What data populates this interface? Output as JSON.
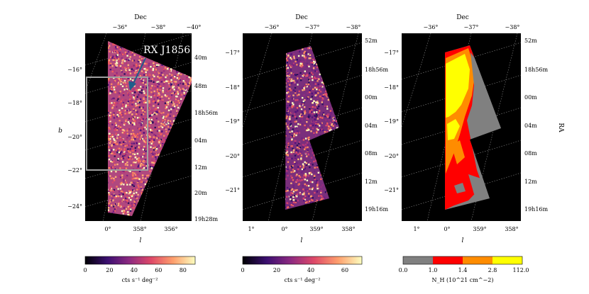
{
  "chart_data": [
    {
      "type": "heatmap",
      "top_axis_label": "Dec",
      "top_ticks": [
        "−36°",
        "−38°",
        "−40°"
      ],
      "right_ticks": [
        "40m",
        "48m",
        "18h56m",
        "04m",
        "12m",
        "20m",
        "19h28m"
      ],
      "left_axis_label": "b",
      "left_ticks": [
        "−16°",
        "−18°",
        "−20°",
        "−22°",
        "−24°"
      ],
      "bottom_axis_label": "l",
      "bottom_ticks": [
        "0°",
        "358°",
        "356°"
      ],
      "annotation": "RX J1856",
      "colorbar": {
        "ticks": [
          "0",
          "20",
          "40",
          "60",
          "80"
        ],
        "range": [
          0,
          90
        ],
        "label": "cts s⁻¹ deg⁻²",
        "colormap": "magma"
      }
    },
    {
      "type": "heatmap",
      "top_axis_label": "Dec",
      "top_ticks": [
        "−36°",
        "−37°",
        "−38°"
      ],
      "right_ticks": [
        "52m",
        "18h56m",
        "00m",
        "04m",
        "08m",
        "12m",
        "19h16m"
      ],
      "left_ticks": [
        "−17°",
        "−18°",
        "−19°",
        "−20°",
        "−21°"
      ],
      "bottom_axis_label": "l",
      "bottom_ticks": [
        "1°",
        "0°",
        "359°",
        "358°"
      ],
      "colorbar": {
        "ticks": [
          "0",
          "20",
          "40",
          "60"
        ],
        "range": [
          0,
          70
        ],
        "label": "cts s⁻¹ deg⁻²",
        "colormap": "magma"
      }
    },
    {
      "type": "heatmap",
      "top_axis_label": "Dec",
      "top_ticks": [
        "−36°",
        "−37°",
        "−38°"
      ],
      "right_axis_label": "RA",
      "right_ticks": [
        "52m",
        "18h56m",
        "00m",
        "04m",
        "08m",
        "12m",
        "19h16m"
      ],
      "left_ticks": [
        "−17°",
        "−18°",
        "−19°",
        "−20°",
        "−21°"
      ],
      "bottom_axis_label": "l",
      "bottom_ticks": [
        "1°",
        "0°",
        "359°",
        "358°"
      ],
      "colorbar": {
        "type": "discrete",
        "ticks": [
          "0.0",
          "1.0",
          "1.4",
          "2.8",
          "112.0"
        ],
        "colors": [
          "#808080",
          "#ff0000",
          "#ff8c00",
          "#ffff00"
        ],
        "label": "N_H (10^21 cm^−2)"
      }
    }
  ],
  "colors": {
    "panel_bg": "#000000",
    "gridline": "#888888",
    "annotation_box": "#a0a0a0",
    "arrow": "#1f5f8b"
  }
}
